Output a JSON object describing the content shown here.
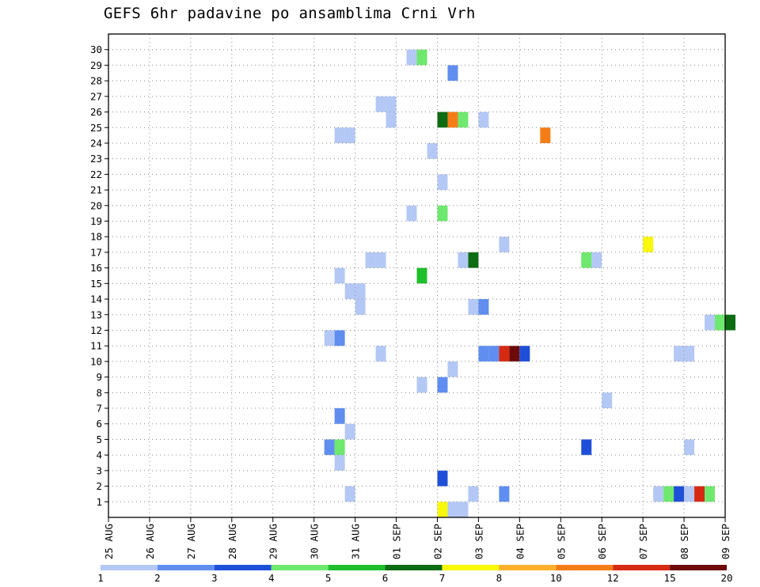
{
  "chart_data": {
    "type": "heatmap",
    "title": "GEFS 6hr padavine po ansamblima Crni Vrh",
    "xlabel": "",
    "ylabel": "",
    "x_tick_labels": [
      "25 AUG",
      "26 AUG",
      "27 AUG",
      "28 AUG",
      "29 AUG",
      "30 AUG",
      "31 AUG",
      "01 SEP",
      "02 SEP",
      "03 SEP",
      "04 SEP",
      "05 SEP",
      "06 SEP",
      "07 SEP",
      "08 SEP",
      "09 SEP"
    ],
    "x_unit": "day index from 25 AUG (6-hour steps)",
    "xlim": [
      0,
      15.25
    ],
    "y_tick_labels": [
      "1",
      "2",
      "3",
      "4",
      "5",
      "6",
      "7",
      "8",
      "9",
      "10",
      "11",
      "12",
      "13",
      "14",
      "15",
      "16",
      "17",
      "18",
      "19",
      "20",
      "21",
      "22",
      "23",
      "24",
      "25",
      "26",
      "27",
      "28",
      "29",
      "30"
    ],
    "ylim": [
      0,
      30
    ],
    "grid": "dotted",
    "colorbar": {
      "labels": [
        "1",
        "2",
        "3",
        "4",
        "5",
        "6",
        "7",
        "8",
        "10",
        "12",
        "15",
        "20"
      ],
      "colors": [
        "#b4c8f5",
        "#5f8ef0",
        "#1e4fd8",
        "#6ee86e",
        "#1fbf2b",
        "#0d6b12",
        "#f8f80a",
        "#fbb02c",
        "#f57d17",
        "#d62a12",
        "#6e0a0a"
      ]
    },
    "cells": [
      {
        "member": 0,
        "t": 8.25,
        "level": 7
      },
      {
        "member": 0,
        "t": 8.5,
        "level": 1
      },
      {
        "member": 0,
        "t": 8.75,
        "level": 1
      },
      {
        "member": 1,
        "t": 6.0,
        "level": 1
      },
      {
        "member": 1,
        "t": 9.0,
        "level": 1
      },
      {
        "member": 1,
        "t": 9.75,
        "level": 2
      },
      {
        "member": 1,
        "t": 13.5,
        "level": 1
      },
      {
        "member": 1,
        "t": 13.75,
        "level": 4
      },
      {
        "member": 1,
        "t": 14.0,
        "level": 3
      },
      {
        "member": 1,
        "t": 14.25,
        "level": 1
      },
      {
        "member": 1,
        "t": 14.5,
        "level": 10
      },
      {
        "member": 1,
        "t": 14.75,
        "level": 4
      },
      {
        "member": 2,
        "t": 8.25,
        "level": 3
      },
      {
        "member": 3,
        "t": 5.75,
        "level": 1
      },
      {
        "member": 4,
        "t": 5.5,
        "level": 2
      },
      {
        "member": 4,
        "t": 5.75,
        "level": 4
      },
      {
        "member": 4,
        "t": 11.75,
        "level": 3
      },
      {
        "member": 4,
        "t": 14.25,
        "level": 1
      },
      {
        "member": 5,
        "t": 6.0,
        "level": 1
      },
      {
        "member": 6,
        "t": 5.75,
        "level": 2
      },
      {
        "member": 7,
        "t": 12.25,
        "level": 1
      },
      {
        "member": 8,
        "t": 7.75,
        "level": 1
      },
      {
        "member": 8,
        "t": 8.25,
        "level": 2
      },
      {
        "member": 9,
        "t": 8.5,
        "level": 1
      },
      {
        "member": 10,
        "t": 6.75,
        "level": 1
      },
      {
        "member": 10,
        "t": 9.25,
        "level": 2
      },
      {
        "member": 10,
        "t": 9.5,
        "level": 2
      },
      {
        "member": 10,
        "t": 9.75,
        "level": 10
      },
      {
        "member": 10,
        "t": 10.0,
        "level": 11
      },
      {
        "member": 10,
        "t": 10.25,
        "level": 3
      },
      {
        "member": 10,
        "t": 14.0,
        "level": 1
      },
      {
        "member": 10,
        "t": 14.25,
        "level": 1
      },
      {
        "member": 11,
        "t": 5.5,
        "level": 1
      },
      {
        "member": 11,
        "t": 5.75,
        "level": 2
      },
      {
        "member": 12,
        "t": 14.75,
        "level": 1
      },
      {
        "member": 12,
        "t": 15.0,
        "level": 4
      },
      {
        "member": 12,
        "t": 15.25,
        "level": 6
      },
      {
        "member": 13,
        "t": 6.25,
        "level": 1
      },
      {
        "member": 13,
        "t": 9.0,
        "level": 1
      },
      {
        "member": 13,
        "t": 9.25,
        "level": 2
      },
      {
        "member": 14,
        "t": 6.0,
        "level": 1
      },
      {
        "member": 14,
        "t": 6.25,
        "level": 1
      },
      {
        "member": 15,
        "t": 5.75,
        "level": 1
      },
      {
        "member": 15,
        "t": 7.75,
        "level": 5
      },
      {
        "member": 16,
        "t": 6.5,
        "level": 1
      },
      {
        "member": 16,
        "t": 6.75,
        "level": 1
      },
      {
        "member": 16,
        "t": 8.75,
        "level": 1
      },
      {
        "member": 16,
        "t": 9.0,
        "level": 6
      },
      {
        "member": 16,
        "t": 11.75,
        "level": 4
      },
      {
        "member": 16,
        "t": 12.0,
        "level": 1
      },
      {
        "member": 17,
        "t": 9.75,
        "level": 1
      },
      {
        "member": 17,
        "t": 13.25,
        "level": 7
      },
      {
        "member": 19,
        "t": 7.5,
        "level": 1
      },
      {
        "member": 19,
        "t": 8.25,
        "level": 4
      },
      {
        "member": 21,
        "t": 8.25,
        "level": 1
      },
      {
        "member": 23,
        "t": 8.0,
        "level": 1
      },
      {
        "member": 24,
        "t": 5.75,
        "level": 1
      },
      {
        "member": 24,
        "t": 6.0,
        "level": 1
      },
      {
        "member": 24,
        "t": 10.75,
        "level": 9
      },
      {
        "member": 25,
        "t": 7.0,
        "level": 1
      },
      {
        "member": 25,
        "t": 8.25,
        "level": 6
      },
      {
        "member": 25,
        "t": 8.5,
        "level": 9
      },
      {
        "member": 25,
        "t": 8.75,
        "level": 4
      },
      {
        "member": 25,
        "t": 9.25,
        "level": 1
      },
      {
        "member": 26,
        "t": 6.75,
        "level": 1
      },
      {
        "member": 26,
        "t": 7.0,
        "level": 1
      },
      {
        "member": 28,
        "t": 8.5,
        "level": 2
      },
      {
        "member": 29,
        "t": 7.5,
        "level": 1
      },
      {
        "member": 29,
        "t": 7.75,
        "level": 4
      }
    ]
  }
}
